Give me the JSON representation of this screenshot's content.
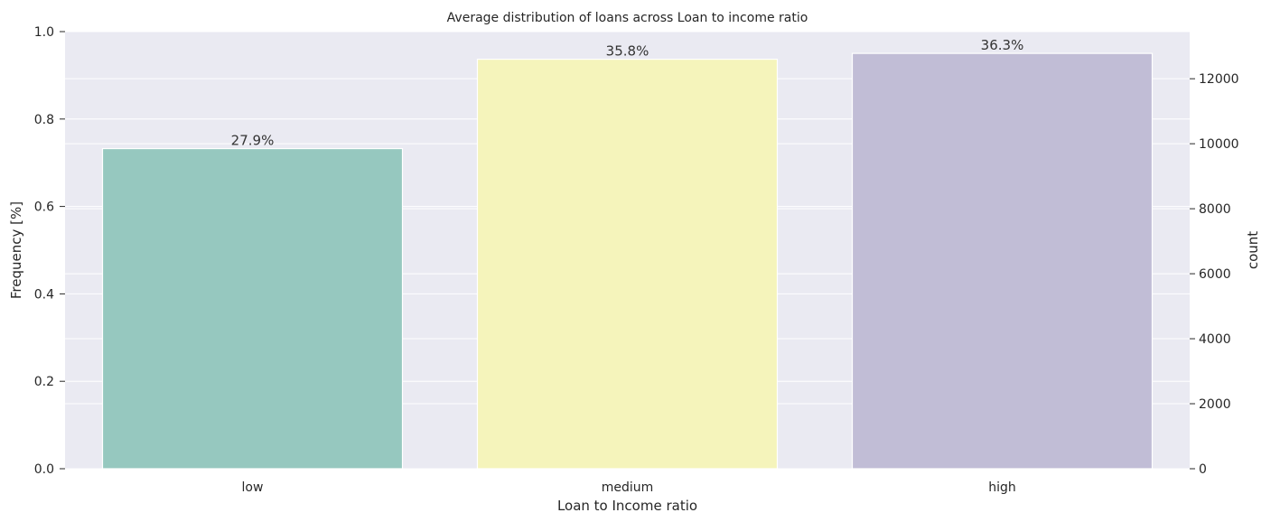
{
  "chart_data": {
    "type": "bar",
    "title": "Average distribution of loans across Loan to income ratio",
    "xlabel": "Loan to Income ratio",
    "ylabel": "Frequency [%]",
    "ylabel_right": "count",
    "categories": [
      "low",
      "medium",
      "high"
    ],
    "counts": [
      9850,
      12600,
      12780
    ],
    "percent_labels": [
      "27.9%",
      "35.8%",
      "36.3%"
    ],
    "colors": [
      "#96c8bf",
      "#f5f4bb",
      "#c1bdd6"
    ],
    "ylim_left": [
      0,
      1.0
    ],
    "yticks_left": [
      "0.0",
      "0.2",
      "0.4",
      "0.6",
      "0.8",
      "1.0"
    ],
    "ylim_right": [
      0,
      13450
    ],
    "yticks_right": [
      "0",
      "2000",
      "4000",
      "6000",
      "8000",
      "10000",
      "12000"
    ],
    "grid": true,
    "background": "#eaeaf2",
    "grid_color": "#ffffff"
  }
}
